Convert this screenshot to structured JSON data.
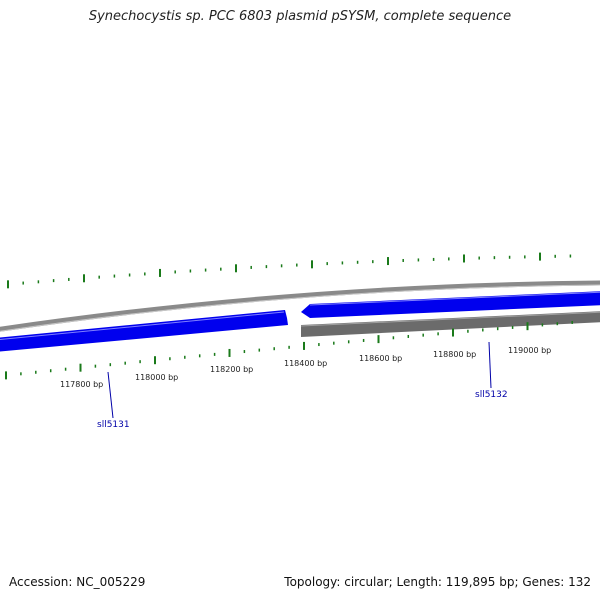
{
  "title": "Synechocystis sp. PCC 6803 plasmid pSYSM, complete sequence",
  "footer": {
    "accession": "Accession: NC_005229",
    "summary": "Topology: circular; Length: 119,895 bp; Genes: 132"
  },
  "colors": {
    "forward_gene": "#0000ee",
    "reverse_gene": "#6b6b6b",
    "backbone": "#8a8a8a",
    "gc_ticks": "#1a7a1a",
    "label_line": "#0000a8"
  },
  "scale_ticks": [
    {
      "label": "117800 bp"
    },
    {
      "label": "118000 bp"
    },
    {
      "label": "118200 bp"
    },
    {
      "label": "118400 bp"
    },
    {
      "label": "118600 bp"
    },
    {
      "label": "118800 bp"
    },
    {
      "label": "119000 bp"
    }
  ],
  "genes": [
    {
      "name": "sll5131",
      "strand": "forward"
    },
    {
      "name": "sll5132",
      "strand": "reverse"
    }
  ]
}
